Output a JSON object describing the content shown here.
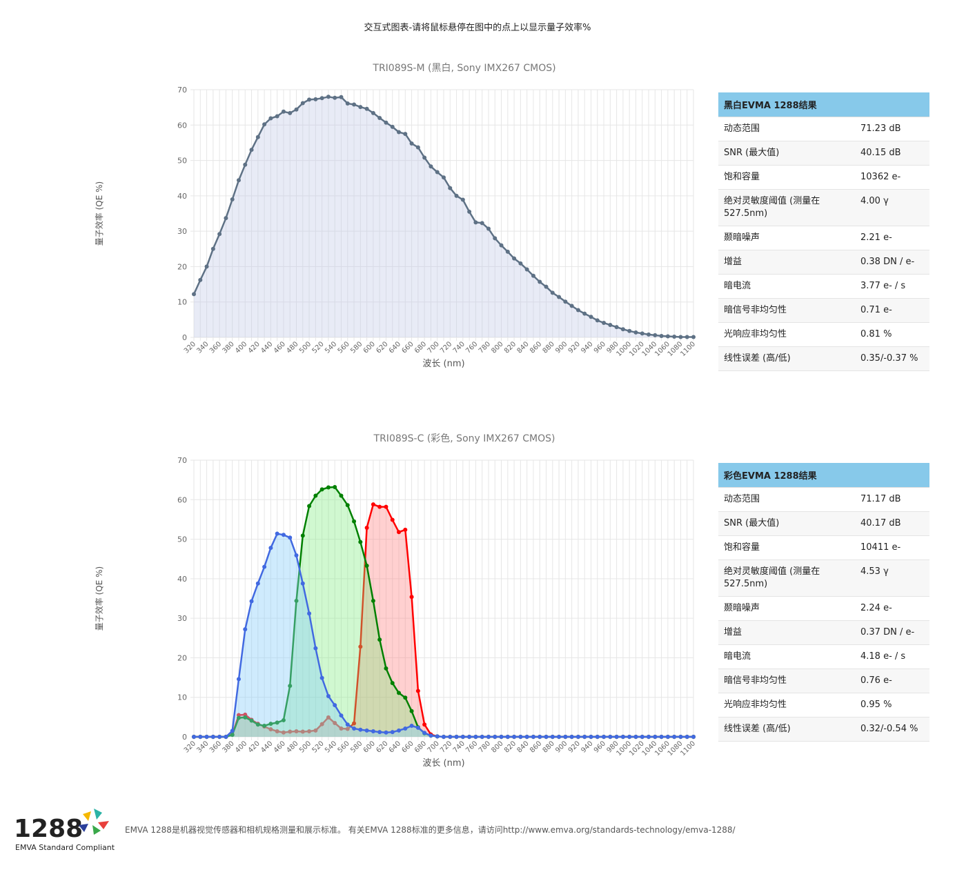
{
  "header": {
    "title": "交互式图表-请将鼠标悬停在图中的点上以显示量子效率%"
  },
  "chart_data": [
    {
      "type": "line",
      "title": "TRI089S-M (黑白, Sony IMX267 CMOS)",
      "x_label": "波长 (nm)",
      "y_label": "量子效率 (QE %)",
      "x": [
        320,
        330,
        340,
        350,
        360,
        370,
        380,
        390,
        400,
        410,
        420,
        430,
        440,
        450,
        460,
        470,
        480,
        490,
        500,
        510,
        520,
        530,
        540,
        550,
        560,
        570,
        580,
        590,
        600,
        610,
        620,
        630,
        640,
        650,
        660,
        670,
        680,
        690,
        700,
        710,
        720,
        730,
        740,
        750,
        760,
        770,
        780,
        790,
        800,
        810,
        820,
        830,
        840,
        850,
        860,
        870,
        880,
        890,
        900,
        910,
        920,
        930,
        940,
        950,
        960,
        970,
        980,
        990,
        1000,
        1010,
        1020,
        1030,
        1040,
        1050,
        1060,
        1070,
        1080,
        1090,
        1100
      ],
      "series": [
        {
          "color": "#5e7185",
          "fill": "rgba(190,198,228,0.35)",
          "values": [
            12.2,
            16.2,
            20,
            25,
            29.2,
            33.7,
            39,
            44.4,
            48.8,
            53,
            56.6,
            60.2,
            61.9,
            62.5,
            63.8,
            63.4,
            64.4,
            66.2,
            67.2,
            67.3,
            67.6,
            68,
            67.7,
            67.9,
            66.1,
            65.8,
            65.1,
            64.6,
            63.4,
            62,
            60.7,
            59.5,
            58,
            57.5,
            54.8,
            53.7,
            50.8,
            48.3,
            46.7,
            45.2,
            42.2,
            40,
            38.9,
            35.5,
            32.5,
            32.3,
            30.7,
            28,
            26,
            24.2,
            22.3,
            20.9,
            19.2,
            17.4,
            15.7,
            14.3,
            12.6,
            11.4,
            10.1,
            8.9,
            7.7,
            6.7,
            5.8,
            4.8,
            4.1,
            3.5,
            2.9,
            2.3,
            1.8,
            1.4,
            1.1,
            0.8,
            0.6,
            0.4,
            0.3,
            0.2,
            0.1,
            0.1,
            0.1
          ]
        }
      ],
      "xlim": [
        320,
        1100
      ],
      "xticks": [
        320,
        340,
        360,
        380,
        400,
        420,
        440,
        460,
        480,
        500,
        520,
        540,
        560,
        580,
        600,
        620,
        640,
        660,
        680,
        700,
        720,
        740,
        760,
        780,
        800,
        820,
        840,
        860,
        880,
        900,
        920,
        940,
        960,
        980,
        1000,
        1020,
        1040,
        1060,
        1080,
        1100
      ],
      "ylim": [
        0,
        70
      ],
      "yticks": [
        0,
        10,
        20,
        30,
        40,
        50,
        60,
        70
      ],
      "grid": true
    },
    {
      "type": "line",
      "title": "TRI089S-C (彩色, Sony IMX267 CMOS)",
      "x_label": "波长 (nm)",
      "y_label": "量子效率 (QE %)",
      "x": [
        320,
        330,
        340,
        350,
        360,
        370,
        380,
        390,
        400,
        410,
        420,
        430,
        440,
        450,
        460,
        470,
        480,
        490,
        500,
        510,
        520,
        530,
        540,
        550,
        560,
        570,
        580,
        590,
        600,
        610,
        620,
        630,
        640,
        650,
        660,
        670,
        680,
        690,
        700,
        710,
        720,
        730,
        740,
        750,
        760,
        770,
        780,
        790,
        800,
        810,
        820,
        830,
        840,
        850,
        860,
        870,
        880,
        890,
        900,
        910,
        920,
        930,
        940,
        950,
        960,
        970,
        980,
        990,
        1000,
        1010,
        1020,
        1030,
        1040,
        1050,
        1060,
        1070,
        1080,
        1090,
        1100
      ],
      "series": [
        {
          "color": "#ff0000",
          "fill": "rgba(255,120,120,0.35)",
          "values": [
            0,
            0,
            0,
            0,
            0,
            0,
            0.6,
            5.5,
            5.6,
            4.3,
            3.3,
            2.6,
            1.9,
            1.4,
            1.1,
            1.3,
            1.4,
            1.3,
            1.4,
            1.6,
            3.2,
            4.9,
            3.5,
            2.1,
            2.0,
            3.4,
            22.8,
            52.9,
            58.8,
            58.2,
            58.2,
            54.9,
            51.8,
            52.4,
            35.4,
            11.6,
            3.1,
            0.6,
            0.1,
            0,
            0,
            0,
            0,
            0,
            0,
            0,
            0,
            0,
            0,
            0,
            0,
            0,
            0,
            0,
            0,
            0,
            0,
            0,
            0,
            0,
            0,
            0,
            0,
            0,
            0,
            0,
            0,
            0,
            0,
            0,
            0,
            0,
            0,
            0,
            0,
            0,
            0,
            0,
            0
          ]
        },
        {
          "color": "#008000",
          "fill": "rgba(120,235,120,0.35)",
          "values": [
            0,
            0,
            0,
            0,
            0,
            0,
            0.5,
            4.8,
            4.9,
            4.1,
            3.1,
            2.8,
            3.3,
            3.6,
            4.2,
            12.9,
            34.4,
            50.9,
            58.4,
            61,
            62.6,
            63.1,
            63.2,
            61,
            58.6,
            54.5,
            49.3,
            43.3,
            34.4,
            24.6,
            17.3,
            13.6,
            11.1,
            9.9,
            6.5,
            2.4,
            0.9,
            0.3,
            0.1,
            0,
            0,
            0,
            0,
            0,
            0,
            0,
            0,
            0,
            0,
            0,
            0,
            0,
            0,
            0,
            0,
            0,
            0,
            0,
            0,
            0,
            0,
            0,
            0,
            0,
            0,
            0,
            0,
            0,
            0,
            0,
            0,
            0,
            0,
            0,
            0,
            0,
            0,
            0,
            0
          ]
        },
        {
          "color": "#4169e1",
          "fill": "rgba(135,206,250,0.4)",
          "values": [
            0,
            0,
            0,
            0,
            0,
            0,
            1.5,
            14.6,
            27.2,
            34.3,
            38.8,
            43,
            47.8,
            51.4,
            51.1,
            50.4,
            45.9,
            38.8,
            31.2,
            22.4,
            14.9,
            10.3,
            8,
            5.4,
            3.1,
            2.1,
            1.8,
            1.6,
            1.4,
            1.2,
            1.1,
            1.2,
            1.6,
            2.1,
            2.8,
            2.3,
            1,
            0.3,
            0.1,
            0,
            0,
            0,
            0,
            0,
            0,
            0,
            0,
            0,
            0,
            0,
            0,
            0,
            0,
            0,
            0,
            0,
            0,
            0,
            0,
            0,
            0,
            0,
            0,
            0,
            0,
            0,
            0,
            0,
            0,
            0,
            0,
            0,
            0,
            0,
            0,
            0,
            0,
            0,
            0
          ]
        }
      ],
      "xlim": [
        320,
        1100
      ],
      "xticks": [
        320,
        340,
        360,
        380,
        400,
        420,
        440,
        460,
        480,
        500,
        520,
        540,
        560,
        580,
        600,
        620,
        640,
        660,
        680,
        700,
        720,
        740,
        760,
        780,
        800,
        820,
        840,
        860,
        880,
        900,
        920,
        940,
        960,
        980,
        1000,
        1020,
        1040,
        1060,
        1080,
        1100
      ],
      "ylim": [
        0,
        70
      ],
      "yticks": [
        0,
        10,
        20,
        30,
        40,
        50,
        60,
        70
      ],
      "grid": true
    }
  ],
  "tables": [
    {
      "title": "黑白EVMA 1288结果",
      "rows": [
        [
          "动态范围",
          "71.23 dB"
        ],
        [
          "SNR (最大值)",
          "40.15 dB"
        ],
        [
          "饱和容量",
          "10362 e-"
        ],
        [
          "绝对灵敏度阈值 (测量在527.5nm)",
          "4.00 γ"
        ],
        [
          "颞暗噪声",
          "2.21 e-"
        ],
        [
          "增益",
          "0.38 DN / e-"
        ],
        [
          "暗电流",
          "3.77 e- / s"
        ],
        [
          "暗信号非均匀性",
          "0.71 e-"
        ],
        [
          "光响应非均匀性",
          "0.81 %"
        ],
        [
          "线性误差 (高/低)",
          "0.35/-0.37 %"
        ]
      ]
    },
    {
      "title": "彩色EVMA 1288结果",
      "rows": [
        [
          "动态范围",
          "71.17 dB"
        ],
        [
          "SNR (最大值)",
          "40.17 dB"
        ],
        [
          "饱和容量",
          "10411 e-"
        ],
        [
          "绝对灵敏度阈值 (测量在527.5nm)",
          "4.53 γ"
        ],
        [
          "颞暗噪声",
          "2.24 e-"
        ],
        [
          "增益",
          "0.37 DN / e-"
        ],
        [
          "暗电流",
          "4.18 e- / s"
        ],
        [
          "暗信号非均匀性",
          "0.76 e-"
        ],
        [
          "光响应非均匀性",
          "0.95 %"
        ],
        [
          "线性误差 (高/低)",
          "0.32/-0.54 %"
        ]
      ]
    }
  ],
  "footer": {
    "logo_number": "1288",
    "logo_text": "EMVA Standard Compliant",
    "text": "EMVA 1288是机器视觉传感器和相机规格测量和展示标准。 有关EMVA 1288标准的更多信息，请访问http://www.emva.org/standards-technology/emva-1288/"
  }
}
